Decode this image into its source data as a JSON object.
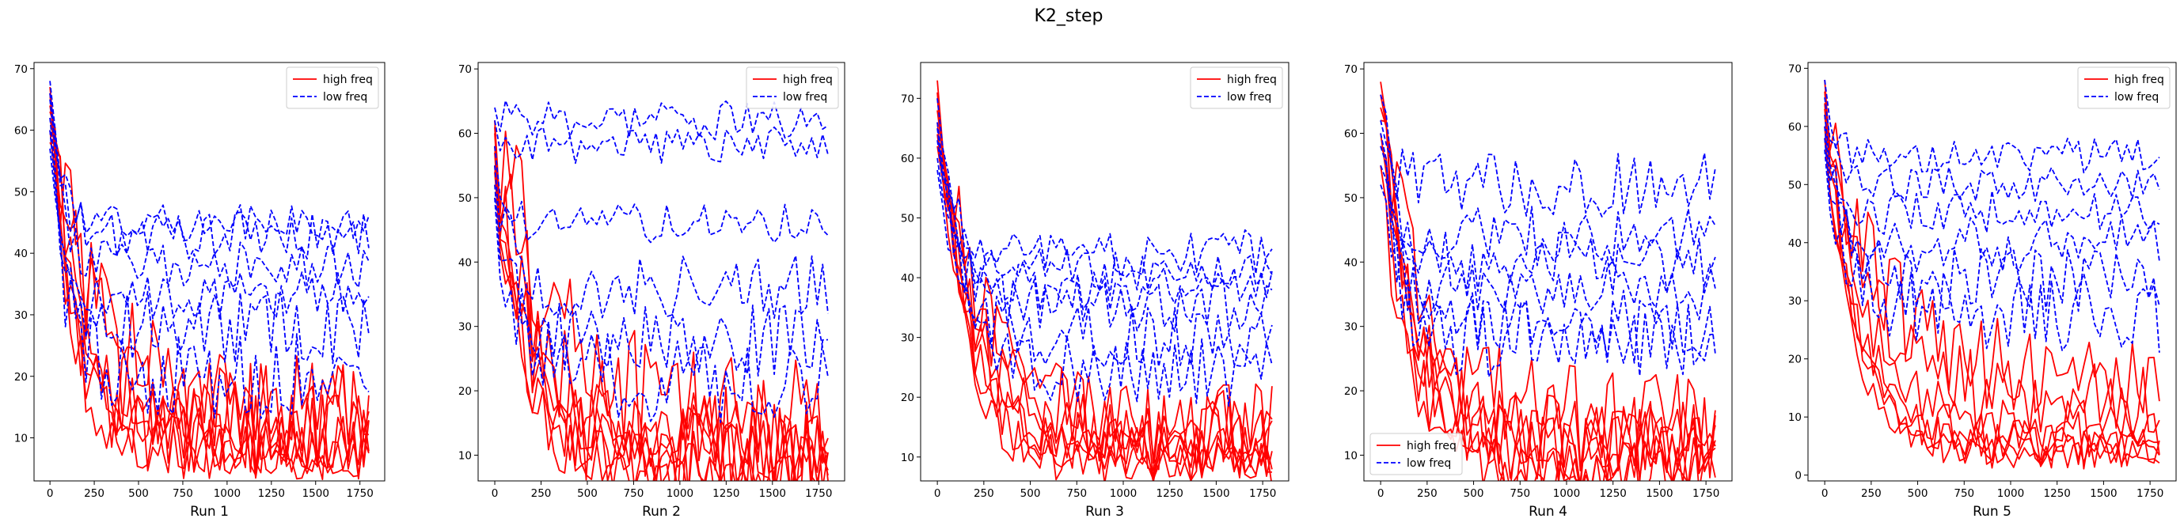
{
  "title": "K2_step",
  "colors": {
    "high": "#ff0000",
    "low": "#0000ff"
  },
  "chart_data": [
    {
      "type": "line",
      "xlabel": "Run 1",
      "legend": "top-right",
      "xlim": [
        -90,
        1890
      ],
      "ylim": [
        3,
        71
      ],
      "xticks": [
        0,
        250,
        500,
        750,
        1000,
        1250,
        1500,
        1750
      ],
      "yticks": [
        10,
        20,
        30,
        40,
        50,
        60,
        70
      ],
      "series": [
        {
          "name": "high freq",
          "style": "solid",
          "color": "#ff0000",
          "lines": [
            {
              "start": [
                0,
                67
              ],
              "end": [
                1800,
                10
              ],
              "knee": 140,
              "amp": 7
            },
            {
              "start": [
                0,
                64
              ],
              "end": [
                1800,
                13
              ],
              "knee": 180,
              "amp": 9
            },
            {
              "start": [
                0,
                60
              ],
              "end": [
                1800,
                9
              ],
              "knee": 150,
              "amp": 6
            },
            {
              "start": [
                0,
                63
              ],
              "end": [
                1800,
                12
              ],
              "knee": 260,
              "amp": 10
            },
            {
              "start": [
                0,
                66
              ],
              "end": [
                1800,
                8
              ],
              "knee": 120,
              "amp": 5
            },
            {
              "start": [
                0,
                58
              ],
              "end": [
                1800,
                15
              ],
              "knee": 300,
              "amp": 8
            },
            {
              "start": [
                0,
                62
              ],
              "end": [
                1800,
                11
              ],
              "knee": 200,
              "amp": 7
            }
          ]
        },
        {
          "name": "low freq",
          "style": "dashed",
          "color": "#0000ff",
          "lines": [
            {
              "start": [
                0,
                68
              ],
              "end": [
                1800,
                45
              ],
              "knee": 60,
              "amp": 3
            },
            {
              "start": [
                0,
                65
              ],
              "end": [
                1800,
                38
              ],
              "knee": 70,
              "amp": 4
            },
            {
              "start": [
                0,
                60
              ],
              "end": [
                1800,
                33
              ],
              "knee": 60,
              "amp": 4
            },
            {
              "start": [
                0,
                62
              ],
              "end": [
                1800,
                28
              ],
              "knee": 80,
              "amp": 6
            },
            {
              "start": [
                0,
                57
              ],
              "end": [
                1800,
                20
              ],
              "knee": 90,
              "amp": 7
            },
            {
              "start": [
                0,
                66
              ],
              "end": [
                1800,
                43
              ],
              "knee": 60,
              "amp": 4
            }
          ]
        }
      ]
    },
    {
      "type": "line",
      "xlabel": "Run 2",
      "legend": "top-right",
      "xlim": [
        -90,
        1890
      ],
      "ylim": [
        6,
        71
      ],
      "xticks": [
        0,
        250,
        500,
        750,
        1000,
        1250,
        1500,
        1750
      ],
      "yticks": [
        10,
        20,
        30,
        40,
        50,
        60,
        70
      ],
      "series": [
        {
          "name": "high freq",
          "style": "solid",
          "color": "#ff0000",
          "lines": [
            {
              "start": [
                0,
                58
              ],
              "end": [
                1800,
                10
              ],
              "knee": 200,
              "amp": 8
            },
            {
              "start": [
                0,
                60
              ],
              "end": [
                1800,
                12
              ],
              "knee": 250,
              "amp": 9
            },
            {
              "start": [
                0,
                55
              ],
              "end": [
                1800,
                9
              ],
              "knee": 160,
              "amp": 6
            },
            {
              "start": [
                0,
                62
              ],
              "end": [
                1800,
                16
              ],
              "knee": 320,
              "amp": 11
            },
            {
              "start": [
                0,
                57
              ],
              "end": [
                1800,
                11
              ],
              "knee": 180,
              "amp": 7
            },
            {
              "start": [
                0,
                54
              ],
              "end": [
                1800,
                13
              ],
              "knee": 220,
              "amp": 6
            },
            {
              "start": [
                0,
                61
              ],
              "end": [
                1800,
                8
              ],
              "knee": 140,
              "amp": 5
            }
          ]
        },
        {
          "name": "low freq",
          "style": "dashed",
          "color": "#0000ff",
          "lines": [
            {
              "start": [
                0,
                64
              ],
              "end": [
                1800,
                62
              ],
              "knee": 40,
              "amp": 3
            },
            {
              "start": [
                0,
                62
              ],
              "end": [
                1800,
                58
              ],
              "knee": 40,
              "amp": 3
            },
            {
              "start": [
                0,
                58
              ],
              "end": [
                1800,
                46
              ],
              "knee": 50,
              "amp": 3
            },
            {
              "start": [
                0,
                55
              ],
              "end": [
                1800,
                36
              ],
              "knee": 80,
              "amp": 5
            },
            {
              "start": [
                0,
                52
              ],
              "end": [
                1800,
                28
              ],
              "knee": 90,
              "amp": 6
            },
            {
              "start": [
                0,
                50
              ],
              "end": [
                1800,
                22
              ],
              "knee": 110,
              "amp": 7
            }
          ]
        }
      ]
    },
    {
      "type": "line",
      "xlabel": "Run 3",
      "legend": "top-right",
      "xlim": [
        -90,
        1890
      ],
      "ylim": [
        6,
        76
      ],
      "xticks": [
        0,
        250,
        500,
        750,
        1000,
        1250,
        1500,
        1750
      ],
      "yticks": [
        10,
        20,
        30,
        40,
        50,
        60,
        70
      ],
      "series": [
        {
          "name": "high freq",
          "style": "solid",
          "color": "#ff0000",
          "lines": [
            {
              "start": [
                0,
                73
              ],
              "end": [
                1800,
                11
              ],
              "knee": 160,
              "amp": 5
            },
            {
              "start": [
                0,
                70
              ],
              "end": [
                1800,
                13
              ],
              "knee": 200,
              "amp": 7
            },
            {
              "start": [
                0,
                66
              ],
              "end": [
                1800,
                10
              ],
              "knee": 180,
              "amp": 5
            },
            {
              "start": [
                0,
                68
              ],
              "end": [
                1800,
                15
              ],
              "knee": 240,
              "amp": 8
            },
            {
              "start": [
                0,
                64
              ],
              "end": [
                1800,
                12
              ],
              "knee": 220,
              "amp": 6
            },
            {
              "start": [
                0,
                71
              ],
              "end": [
                1800,
                9
              ],
              "knee": 150,
              "amp": 4
            },
            {
              "start": [
                0,
                62
              ],
              "end": [
                1800,
                14
              ],
              "knee": 280,
              "amp": 7
            }
          ]
        },
        {
          "name": "low freq",
          "style": "dashed",
          "color": "#0000ff",
          "lines": [
            {
              "start": [
                0,
                70
              ],
              "end": [
                1800,
                44
              ],
              "knee": 80,
              "amp": 4
            },
            {
              "start": [
                0,
                66
              ],
              "end": [
                1800,
                41
              ],
              "knee": 90,
              "amp": 4
            },
            {
              "start": [
                0,
                63
              ],
              "end": [
                1800,
                38
              ],
              "knee": 100,
              "amp": 4
            },
            {
              "start": [
                0,
                60
              ],
              "end": [
                1800,
                35
              ],
              "knee": 110,
              "amp": 5
            },
            {
              "start": [
                0,
                58
              ],
              "end": [
                1800,
                30
              ],
              "knee": 130,
              "amp": 5
            },
            {
              "start": [
                0,
                65
              ],
              "end": [
                1800,
                24
              ],
              "knee": 150,
              "amp": 6
            }
          ]
        }
      ]
    },
    {
      "type": "line",
      "xlabel": "Run 4",
      "legend": "bottom-left",
      "xlim": [
        -90,
        1890
      ],
      "ylim": [
        6,
        71
      ],
      "xticks": [
        0,
        250,
        500,
        750,
        1000,
        1250,
        1500,
        1750
      ],
      "yticks": [
        10,
        20,
        30,
        40,
        50,
        60,
        70
      ],
      "series": [
        {
          "name": "high freq",
          "style": "solid",
          "color": "#ff0000",
          "lines": [
            {
              "start": [
                0,
                68
              ],
              "end": [
                1800,
                10
              ],
              "knee": 170,
              "amp": 6
            },
            {
              "start": [
                0,
                64
              ],
              "end": [
                1800,
                12
              ],
              "knee": 200,
              "amp": 7
            },
            {
              "start": [
                0,
                60
              ],
              "end": [
                1800,
                9
              ],
              "knee": 150,
              "amp": 5
            },
            {
              "start": [
                0,
                62
              ],
              "end": [
                1800,
                15
              ],
              "knee": 260,
              "amp": 8
            },
            {
              "start": [
                0,
                66
              ],
              "end": [
                1800,
                11
              ],
              "knee": 180,
              "amp": 6
            },
            {
              "start": [
                0,
                58
              ],
              "end": [
                1800,
                13
              ],
              "knee": 220,
              "amp": 6
            },
            {
              "start": [
                0,
                55
              ],
              "end": [
                1800,
                8
              ],
              "knee": 140,
              "amp": 5
            }
          ]
        },
        {
          "name": "low freq",
          "style": "dashed",
          "color": "#0000ff",
          "lines": [
            {
              "start": [
                0,
                66
              ],
              "end": [
                1800,
                52
              ],
              "knee": 50,
              "amp": 5
            },
            {
              "start": [
                0,
                62
              ],
              "end": [
                1800,
                44
              ],
              "knee": 60,
              "amp": 5
            },
            {
              "start": [
                0,
                58
              ],
              "end": [
                1800,
                40
              ],
              "knee": 70,
              "amp": 5
            },
            {
              "start": [
                0,
                60
              ],
              "end": [
                1800,
                36
              ],
              "knee": 80,
              "amp": 5
            },
            {
              "start": [
                0,
                55
              ],
              "end": [
                1800,
                30
              ],
              "knee": 100,
              "amp": 6
            },
            {
              "start": [
                0,
                52
              ],
              "end": [
                1800,
                28
              ],
              "knee": 90,
              "amp": 6
            }
          ]
        }
      ]
    },
    {
      "type": "line",
      "xlabel": "Run 5",
      "legend": "top-right",
      "xlim": [
        -90,
        1890
      ],
      "ylim": [
        -1,
        71
      ],
      "xticks": [
        0,
        250,
        500,
        750,
        1000,
        1250,
        1500,
        1750
      ],
      "yticks": [
        0,
        10,
        20,
        30,
        40,
        50,
        60,
        70
      ],
      "series": [
        {
          "name": "high freq",
          "style": "solid",
          "color": "#ff0000",
          "lines": [
            {
              "start": [
                0,
                68
              ],
              "end": [
                1800,
                5
              ],
              "knee": 160,
              "amp": 4
            },
            {
              "start": [
                0,
                64
              ],
              "end": [
                1800,
                6
              ],
              "knee": 180,
              "amp": 5
            },
            {
              "start": [
                0,
                60
              ],
              "end": [
                1800,
                4
              ],
              "knee": 150,
              "amp": 3
            },
            {
              "start": [
                0,
                66
              ],
              "end": [
                1800,
                12
              ],
              "knee": 260,
              "amp": 7
            },
            {
              "start": [
                0,
                62
              ],
              "end": [
                1800,
                17
              ],
              "knee": 300,
              "amp": 8
            },
            {
              "start": [
                0,
                58
              ],
              "end": [
                1800,
                5
              ],
              "knee": 200,
              "amp": 4
            },
            {
              "start": [
                0,
                63
              ],
              "end": [
                1800,
                8
              ],
              "knee": 220,
              "amp": 5
            }
          ]
        },
        {
          "name": "low freq",
          "style": "dashed",
          "color": "#0000ff",
          "lines": [
            {
              "start": [
                0,
                68
              ],
              "end": [
                1800,
                55
              ],
              "knee": 50,
              "amp": 3
            },
            {
              "start": [
                0,
                65
              ],
              "end": [
                1800,
                50
              ],
              "knee": 60,
              "amp": 3
            },
            {
              "start": [
                0,
                62
              ],
              "end": [
                1800,
                45
              ],
              "knee": 60,
              "amp": 4
            },
            {
              "start": [
                0,
                60
              ],
              "end": [
                1800,
                40
              ],
              "knee": 70,
              "amp": 5
            },
            {
              "start": [
                0,
                58
              ],
              "end": [
                1800,
                34
              ],
              "knee": 80,
              "amp": 6
            },
            {
              "start": [
                0,
                56
              ],
              "end": [
                1800,
                28
              ],
              "knee": 100,
              "amp": 7
            }
          ]
        }
      ]
    }
  ]
}
